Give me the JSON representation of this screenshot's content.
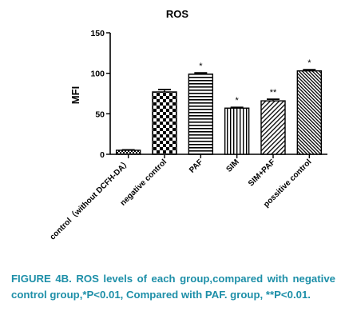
{
  "chart_data": {
    "type": "bar",
    "title": "ROS",
    "ylabel": "MFI",
    "xlabel": "",
    "ylim": [
      0,
      150
    ],
    "yticks": [
      0,
      50,
      100,
      150
    ],
    "grid": false,
    "categories": [
      "control（without DCFH-DA）",
      "negative control",
      "PAF",
      "SIM",
      "SIM+PAF",
      "possitive control"
    ],
    "values": [
      5,
      77,
      99,
      57,
      66,
      103
    ],
    "errors": [
      0.5,
      3,
      1.5,
      1,
      2,
      1.5
    ],
    "annotations": [
      "",
      "",
      "*",
      "*",
      "**",
      "*"
    ],
    "patterns": [
      "small-check",
      "checkerboard",
      "horizontal-lines",
      "vertical-lines",
      "diagonal-lines",
      "dense-diagonal"
    ]
  },
  "caption": "FIGURE 4B. ROS levels of each group,compared with negative control group,*P<0.01, Compared with PAF. group, **P<0.01."
}
